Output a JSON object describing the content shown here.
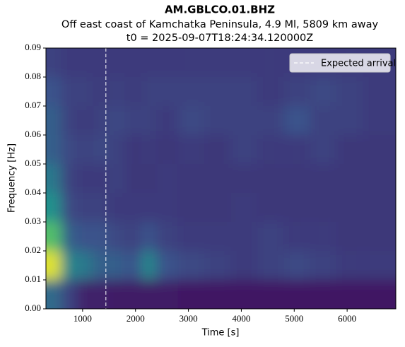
{
  "chart_data": {
    "type": "heatmap",
    "title": "AM.GBLCO.01.BHZ",
    "subtitle": "Off east coast of Kamchatka Peninsula, 4.9 Ml, 5809 km away",
    "subtitle2": "t0 = 2025-09-07T18:24:34.120000Z",
    "x_label": "Time [s]",
    "y_label": "Frequency [Hz]",
    "colormap": "viridis",
    "xlim": [
      307,
      6920
    ],
    "ylim": [
      0,
      0.09
    ],
    "xticks": [
      1000,
      2000,
      3000,
      4000,
      5000,
      6000
    ],
    "yticks": [
      {
        "value": 0,
        "label": "0.00"
      },
      {
        "value": 0.01,
        "label": "0.01"
      },
      {
        "value": 0.02,
        "label": "0.02"
      },
      {
        "value": 0.03,
        "label": "0.03"
      },
      {
        "value": 0.04,
        "label": "0.04"
      },
      {
        "value": 0.05,
        "label": "0.05"
      },
      {
        "value": 0.06,
        "label": "0.06"
      },
      {
        "value": 0.07,
        "label": "0.07"
      },
      {
        "value": 0.08,
        "label": "0.08"
      },
      {
        "value": 0.09,
        "label": "0.09"
      }
    ],
    "xbins": [
      307,
      600,
      900,
      1200,
      1500,
      1800,
      2100,
      2400,
      2800,
      3300,
      3800,
      4300,
      4800,
      5300,
      5800,
      6300,
      6920
    ],
    "ybins": [
      0,
      0.01,
      0.02,
      0.03,
      0.04,
      0.05,
      0.06,
      0.07,
      0.08,
      0.09
    ],
    "z": [
      [
        0.35,
        0.2,
        0.1,
        0.1,
        0.08,
        0.08,
        0.08,
        0.08,
        0.07,
        0.07,
        0.07,
        0.07,
        0.07,
        0.07,
        0.07,
        0.07
      ],
      [
        0.95,
        0.45,
        0.4,
        0.3,
        0.3,
        0.25,
        0.45,
        0.25,
        0.22,
        0.2,
        0.18,
        0.2,
        0.22,
        0.2,
        0.18,
        0.18
      ],
      [
        0.7,
        0.3,
        0.25,
        0.25,
        0.22,
        0.2,
        0.25,
        0.2,
        0.18,
        0.18,
        0.18,
        0.2,
        0.18,
        0.18,
        0.17,
        0.17
      ],
      [
        0.5,
        0.22,
        0.2,
        0.2,
        0.18,
        0.18,
        0.18,
        0.18,
        0.17,
        0.17,
        0.18,
        0.17,
        0.17,
        0.17,
        0.17,
        0.17
      ],
      [
        0.4,
        0.2,
        0.18,
        0.18,
        0.2,
        0.17,
        0.17,
        0.18,
        0.17,
        0.17,
        0.17,
        0.17,
        0.17,
        0.17,
        0.17,
        0.17
      ],
      [
        0.3,
        0.22,
        0.2,
        0.22,
        0.2,
        0.17,
        0.18,
        0.17,
        0.18,
        0.17,
        0.2,
        0.18,
        0.18,
        0.2,
        0.17,
        0.17
      ],
      [
        0.3,
        0.2,
        0.18,
        0.2,
        0.22,
        0.2,
        0.2,
        0.18,
        0.22,
        0.2,
        0.2,
        0.2,
        0.25,
        0.2,
        0.2,
        0.18
      ],
      [
        0.25,
        0.2,
        0.2,
        0.18,
        0.2,
        0.18,
        0.2,
        0.2,
        0.2,
        0.2,
        0.2,
        0.18,
        0.2,
        0.22,
        0.2,
        0.18
      ],
      [
        0.2,
        0.18,
        0.18,
        0.18,
        0.18,
        0.18,
        0.18,
        0.18,
        0.18,
        0.18,
        0.18,
        0.18,
        0.18,
        0.18,
        0.18,
        0.18
      ]
    ],
    "vlines": [
      {
        "name": "Expected arrival",
        "x": 1440,
        "color": "#ffffff"
      }
    ],
    "legend": "upper right"
  }
}
